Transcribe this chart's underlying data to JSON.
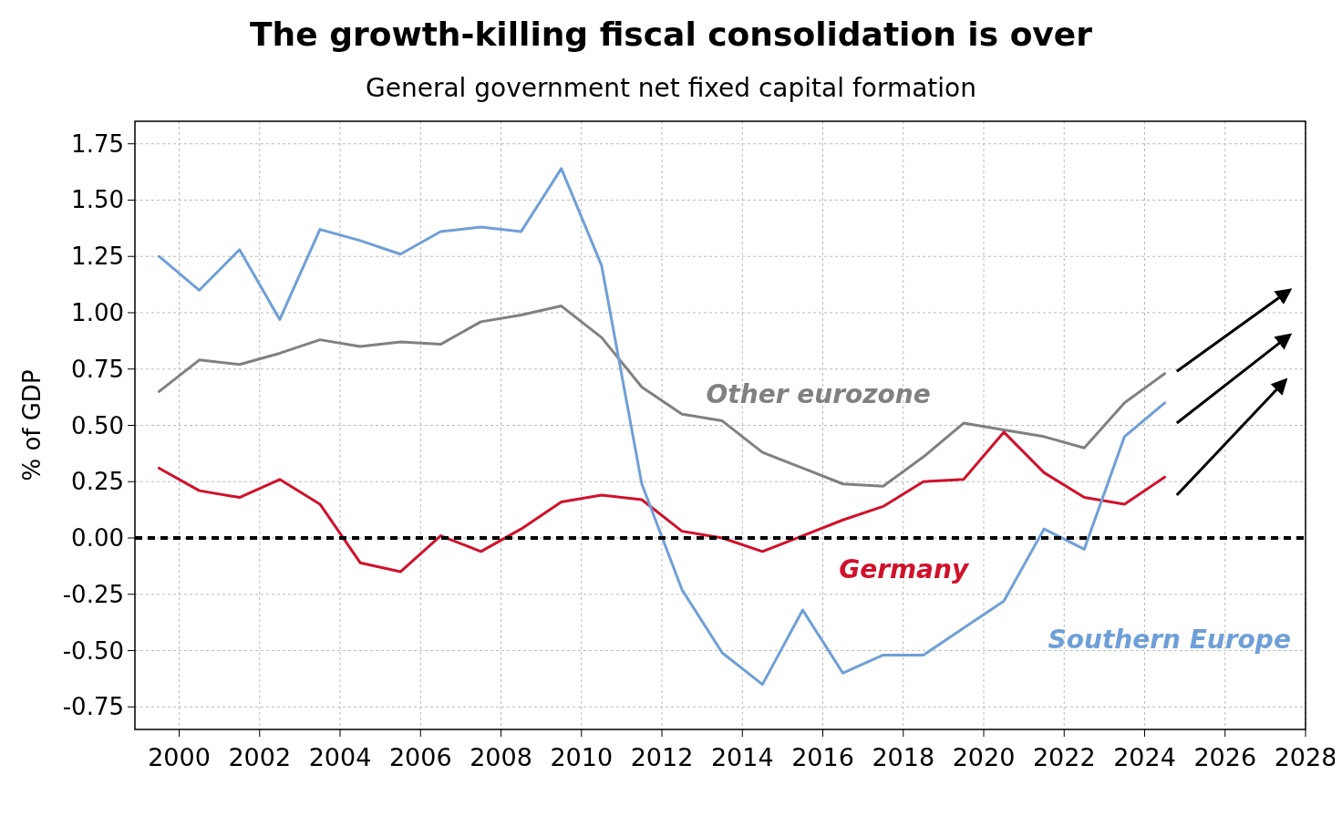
{
  "chart_data": {
    "type": "line",
    "title": "The growth-killing fiscal consolidation is over",
    "subtitle": "General government net fixed capital formation",
    "ylabel": "% of GDP",
    "x": [
      1999.5,
      2000.5,
      2001.5,
      2002.5,
      2003.5,
      2004.5,
      2005.5,
      2006.5,
      2007.5,
      2008.5,
      2009.5,
      2010.5,
      2011.5,
      2012.5,
      2013.5,
      2014.5,
      2015.5,
      2016.5,
      2017.5,
      2018.5,
      2019.5,
      2020.5,
      2021.5,
      2022.5,
      2023.5,
      2024.5
    ],
    "series": [
      {
        "name": "Other eurozone",
        "color": "#808080",
        "values": [
          0.65,
          0.79,
          0.77,
          0.82,
          0.88,
          0.85,
          0.87,
          0.86,
          0.96,
          0.99,
          1.03,
          0.89,
          0.67,
          0.55,
          0.52,
          0.38,
          0.31,
          0.24,
          0.23,
          0.36,
          0.51,
          0.48,
          0.45,
          0.4,
          0.6,
          0.73
        ]
      },
      {
        "name": "Germany",
        "color": "#d0112b",
        "values": [
          0.31,
          0.21,
          0.18,
          0.26,
          0.15,
          -0.11,
          -0.15,
          0.01,
          -0.06,
          0.04,
          0.16,
          0.19,
          0.17,
          0.03,
          0.0,
          -0.06,
          0.01,
          0.08,
          0.14,
          0.25,
          0.26,
          0.47,
          0.29,
          0.18,
          0.15,
          0.27
        ]
      },
      {
        "name": "Southern Europe",
        "color": "#6f9fd8",
        "values": [
          1.25,
          1.1,
          1.28,
          0.97,
          1.37,
          1.32,
          1.26,
          1.36,
          1.38,
          1.36,
          1.64,
          1.21,
          0.24,
          -0.23,
          -0.51,
          -0.65,
          -0.32,
          -0.6,
          -0.52,
          -0.52,
          -0.4,
          -0.28,
          0.04,
          -0.05,
          0.45,
          0.6
        ]
      }
    ],
    "xlim": [
      1998.9,
      2028
    ],
    "xticks": [
      2000,
      2002,
      2004,
      2006,
      2008,
      2010,
      2012,
      2014,
      2016,
      2018,
      2020,
      2022,
      2024,
      2026,
      2028
    ],
    "ylim": [
      -0.85,
      1.85
    ],
    "yticks": [
      {
        "value": 1.75,
        "label": "1.75"
      },
      {
        "value": 1.5,
        "label": "1.50"
      },
      {
        "value": 1.25,
        "label": "1.25"
      },
      {
        "value": 1,
        "label": "1.00"
      },
      {
        "value": 0.75,
        "label": "0.75"
      },
      {
        "value": 0.5,
        "label": "0.50"
      },
      {
        "value": 0.25,
        "label": "0.25"
      },
      {
        "value": 0,
        "label": "0.00"
      },
      {
        "value": -0.25,
        "label": "-0.25"
      },
      {
        "value": -0.5,
        "label": "-0.50"
      },
      {
        "value": -0.75,
        "label": "-0.75"
      }
    ],
    "ref_lines": [
      {
        "axis": "y",
        "value": 0,
        "color": "#000000",
        "line_style": "dashed"
      }
    ],
    "grid": true,
    "legend": false,
    "line_style": "solid",
    "marker": "none"
  }
}
